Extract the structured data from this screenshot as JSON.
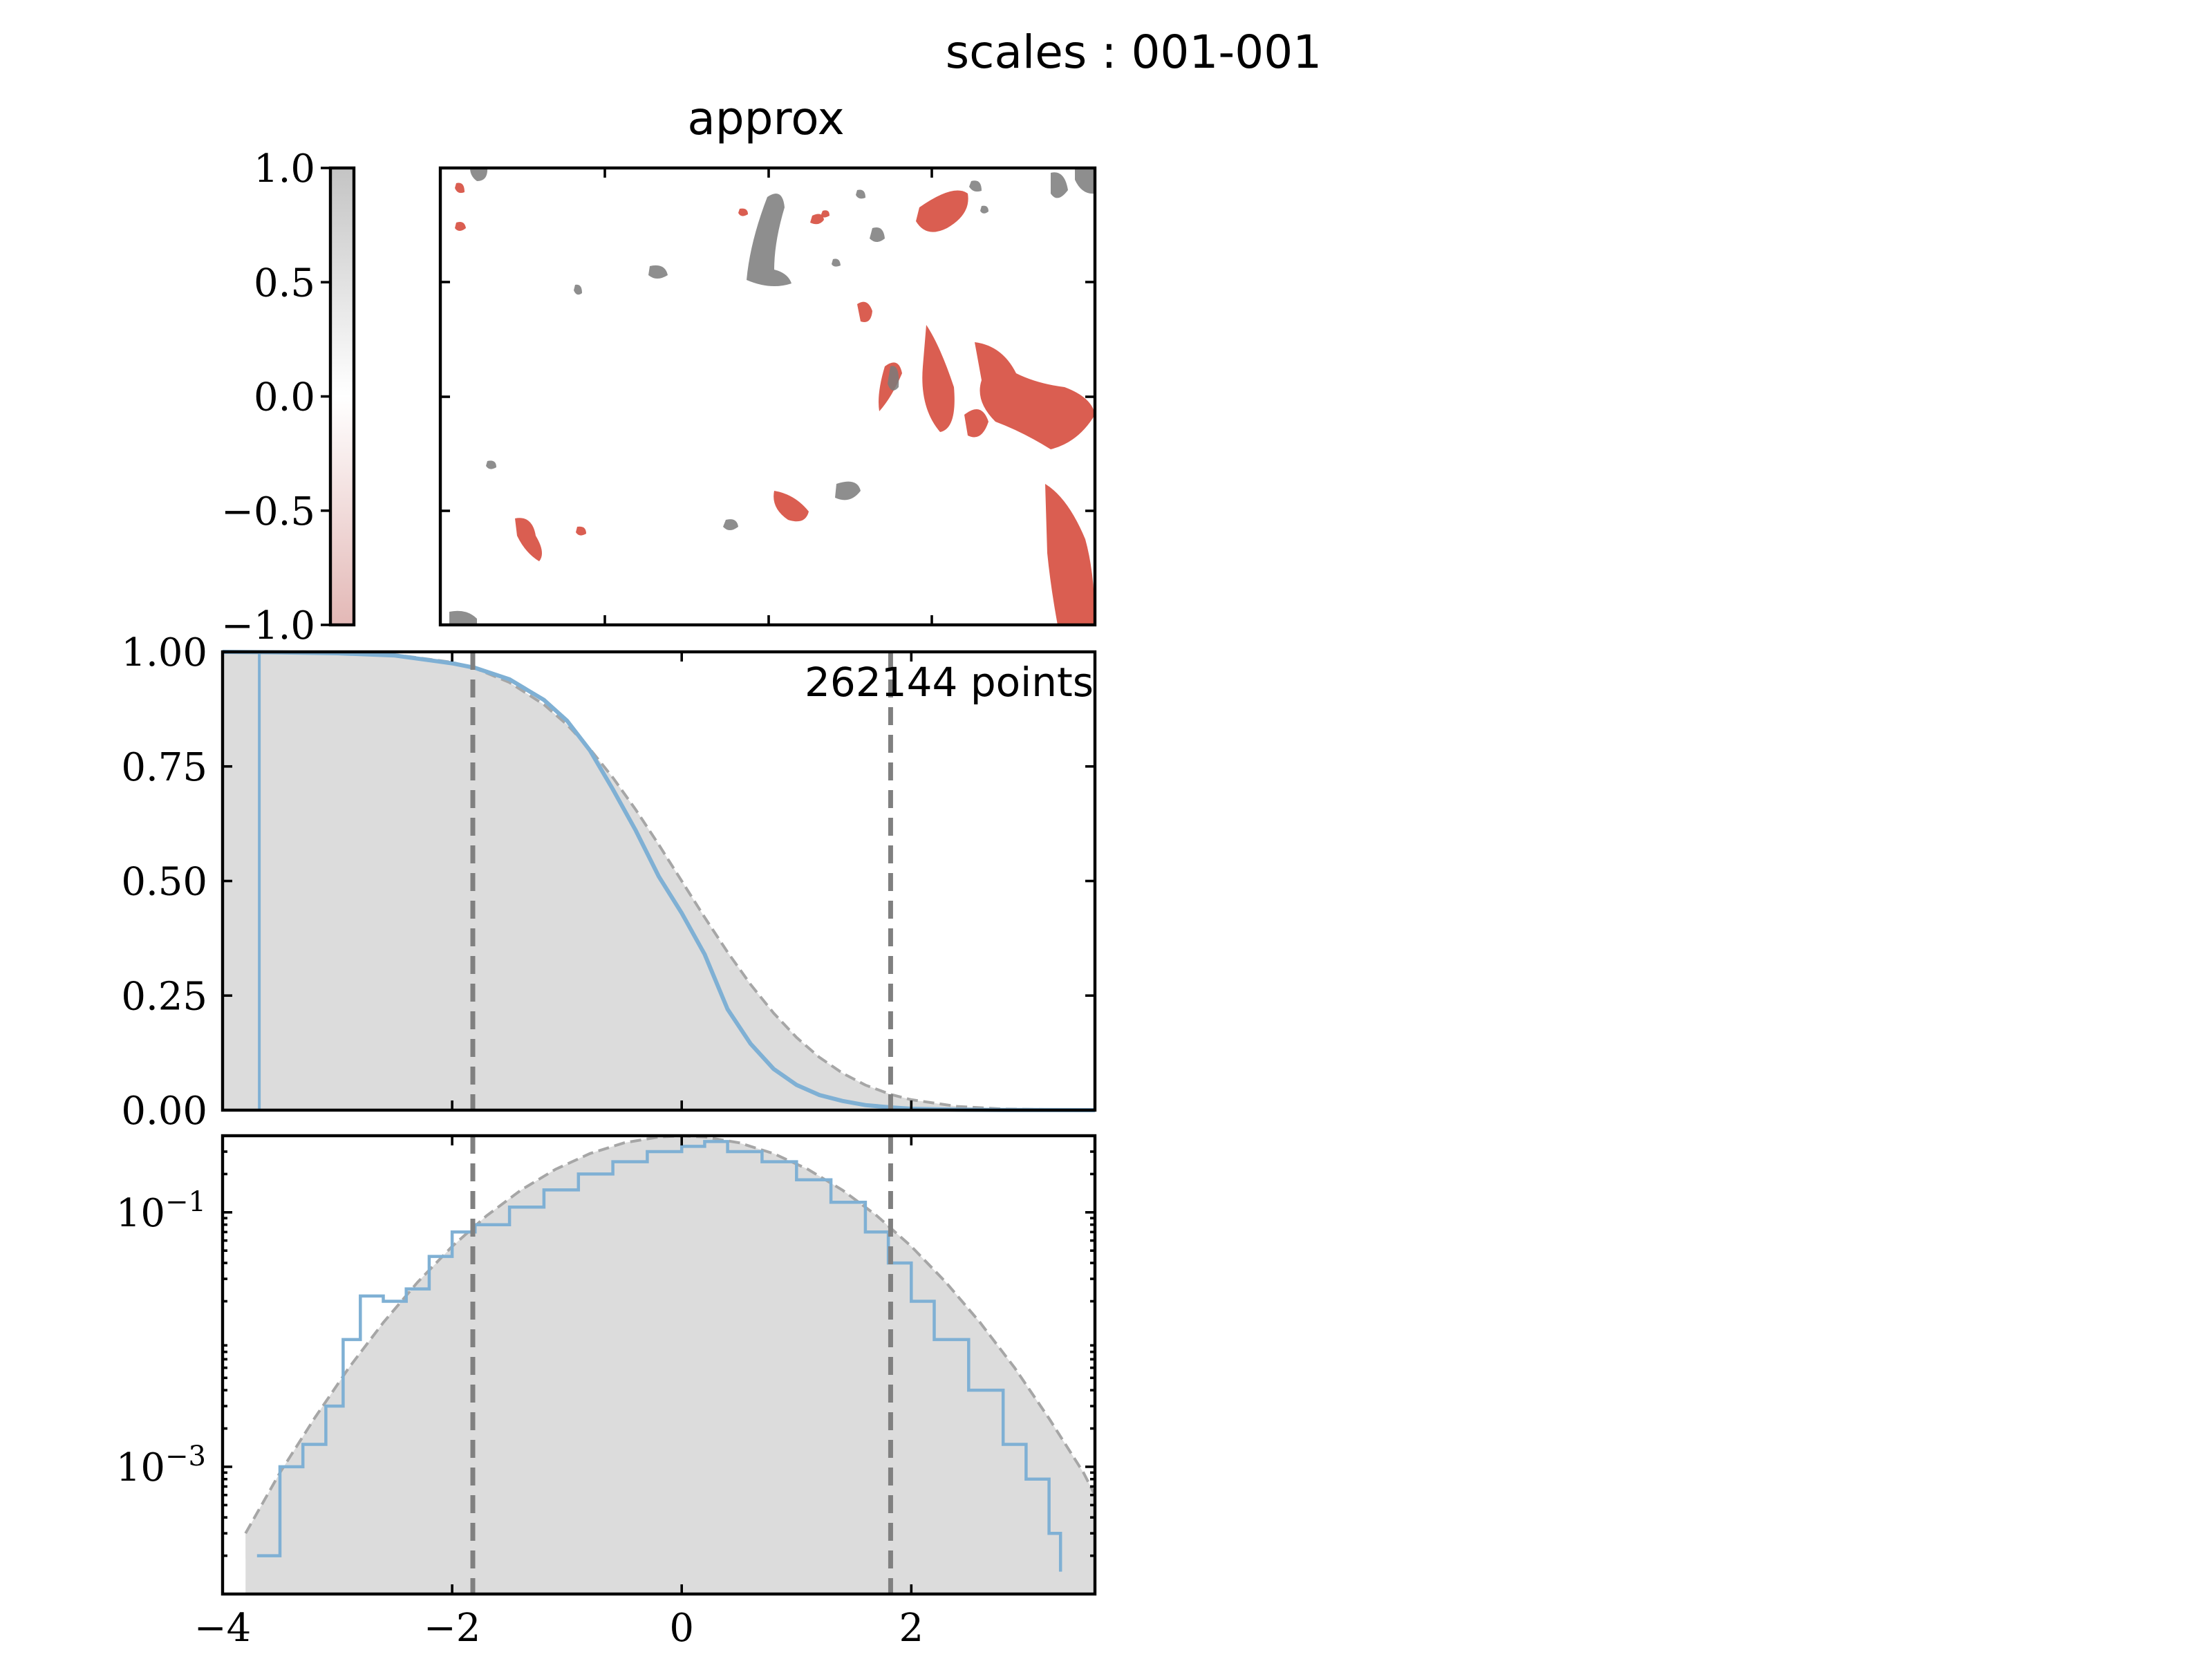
{
  "figure": {
    "suptitle": "scales : 001-001"
  },
  "colors": {
    "positive": "#d64c3e",
    "negative": "#7a7a7a",
    "empirical": "#7fb0d4",
    "gaussian": "#a6a6a6",
    "threshold": "#808080",
    "fill": "#dcdcdc"
  },
  "chart_data": [
    {
      "type": "heatmap",
      "name": "colorbar",
      "colormap": "white-centered diverging (grey high, red low)",
      "ylim": [
        -1.0,
        1.0
      ],
      "tick_values": [
        1.0,
        0.5,
        0.0,
        -0.5,
        -1.0
      ],
      "tick_labels": [
        "1.0",
        "0.5",
        "0.0",
        "−0.5",
        "−1.0"
      ]
    },
    {
      "type": "heatmap",
      "name": "field",
      "title": "approx",
      "description_colors": "red patches concentrated right side, grey patches scattered upper-middle",
      "tick_labels_shown": false
    },
    {
      "type": "line",
      "name": "survival",
      "xlim": [
        -4.0,
        3.6
      ],
      "ylim": [
        0.0,
        1.0
      ],
      "y_tick_labels": [
        "1.00",
        "0.75",
        "0.50",
        "0.25",
        "0.00"
      ],
      "y_tick_values": [
        1.0,
        0.75,
        0.5,
        0.25,
        0.0
      ],
      "annotation": "262144 points",
      "thresholds": [
        -1.82,
        1.82
      ],
      "spike_x": -3.68,
      "series": [
        {
          "style": "empirical",
          "x": [
            -4.0,
            -3.5,
            -3.0,
            -2.5,
            -2.0,
            -1.8,
            -1.5,
            -1.2,
            -1.0,
            -0.8,
            -0.6,
            -0.4,
            -0.2,
            0.0,
            0.2,
            0.4,
            0.6,
            0.8,
            1.0,
            1.2,
            1.4,
            1.6,
            1.82,
            2.0,
            2.4,
            2.8,
            3.6
          ],
          "values": [
            1.0,
            0.999,
            0.997,
            0.992,
            0.975,
            0.965,
            0.94,
            0.895,
            0.85,
            0.785,
            0.7,
            0.61,
            0.51,
            0.43,
            0.34,
            0.22,
            0.145,
            0.09,
            0.055,
            0.033,
            0.02,
            0.011,
            0.006,
            0.003,
            0.001,
            0.0003,
            0.0
          ]
        },
        {
          "style": "gaussian",
          "x": [
            -4.0,
            -3.5,
            -3.0,
            -2.5,
            -2.0,
            -1.8,
            -1.5,
            -1.2,
            -1.0,
            -0.8,
            -0.6,
            -0.4,
            -0.2,
            0.0,
            0.2,
            0.4,
            0.6,
            0.8,
            1.0,
            1.2,
            1.4,
            1.6,
            1.82,
            2.0,
            2.4,
            2.8,
            3.6
          ],
          "values": [
            1.0,
            0.9998,
            0.9987,
            0.9938,
            0.9772,
            0.9641,
            0.9332,
            0.8849,
            0.8413,
            0.7881,
            0.7257,
            0.6554,
            0.5793,
            0.5,
            0.4207,
            0.3446,
            0.2743,
            0.2119,
            0.1587,
            0.1151,
            0.0808,
            0.0548,
            0.0344,
            0.0228,
            0.0082,
            0.0026,
            0.0002
          ]
        }
      ]
    },
    {
      "type": "line",
      "name": "log-density",
      "log_y": true,
      "xlim": [
        -4.0,
        3.6
      ],
      "ylim": [
        0.0001,
        0.4
      ],
      "y_tick_values": [
        0.1,
        0.001
      ],
      "y_ticks": [
        {
          "base": "10",
          "exp": "−1"
        },
        {
          "base": "10",
          "exp": "−3"
        }
      ],
      "x_tick_values": [
        -4,
        -2,
        0,
        2
      ],
      "x_tick_labels": [
        "−4",
        "−2",
        "0",
        "2"
      ],
      "thresholds": [
        -1.82,
        1.82
      ],
      "series": [
        {
          "style": "empirical",
          "x": [
            -3.7,
            -3.5,
            -3.3,
            -3.1,
            -2.95,
            -2.8,
            -2.6,
            -2.4,
            -2.2,
            -2.0,
            -1.8,
            -1.5,
            -1.2,
            -0.9,
            -0.6,
            -0.3,
            0.0,
            0.2,
            0.4,
            0.7,
            1.0,
            1.3,
            1.6,
            1.8,
            2.0,
            2.2,
            2.5,
            2.8,
            3.0,
            3.2,
            3.3
          ],
          "values": [
            0.0002,
            0.001,
            0.0015,
            0.003,
            0.01,
            0.022,
            0.02,
            0.025,
            0.045,
            0.07,
            0.08,
            0.11,
            0.15,
            0.2,
            0.25,
            0.3,
            0.33,
            0.36,
            0.3,
            0.25,
            0.18,
            0.12,
            0.07,
            0.04,
            0.02,
            0.01,
            0.004,
            0.0015,
            0.0008,
            0.0003,
            0.00015
          ]
        },
        {
          "style": "gaussian",
          "x": [
            -3.8,
            -3.5,
            -3.2,
            -2.9,
            -2.6,
            -2.3,
            -2.0,
            -1.7,
            -1.4,
            -1.1,
            -0.8,
            -0.5,
            -0.2,
            0.0,
            0.2,
            0.5,
            0.8,
            1.1,
            1.4,
            1.7,
            2.0,
            2.3,
            2.6,
            2.9,
            3.2,
            3.5,
            3.6
          ],
          "values": [
            0.0003,
            0.0009,
            0.0024,
            0.006,
            0.0136,
            0.0283,
            0.054,
            0.094,
            0.1497,
            0.2179,
            0.2897,
            0.3521,
            0.391,
            0.3989,
            0.391,
            0.3521,
            0.2897,
            0.2179,
            0.1497,
            0.094,
            0.054,
            0.0283,
            0.0136,
            0.006,
            0.0024,
            0.0009,
            0.0006
          ]
        }
      ]
    }
  ]
}
